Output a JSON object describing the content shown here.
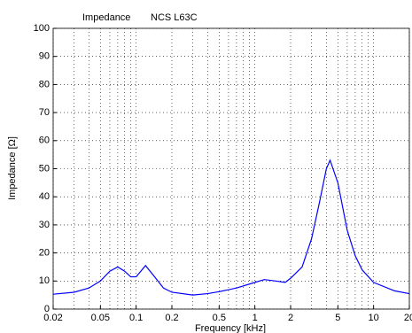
{
  "chart_data": {
    "type": "line",
    "title": "Impedance",
    "subtitle": "NCS L63C",
    "x_label": "Frequency [kHz]",
    "y_label": "Impedance [Ω]",
    "x_scale": "log",
    "grid": true,
    "xlim": [
      0.02,
      20
    ],
    "ylim": [
      0,
      100
    ],
    "xticks": [
      0.02,
      0.05,
      0.1,
      0.2,
      0.5,
      1,
      2,
      5,
      10,
      20
    ],
    "xminorticks": [
      0.03,
      0.04,
      0.06,
      0.07,
      0.08,
      0.09,
      0.3,
      0.4,
      0.6,
      0.7,
      0.8,
      0.9,
      3,
      4,
      6,
      7,
      8,
      9
    ],
    "yticks": [
      0,
      10,
      20,
      30,
      40,
      50,
      60,
      70,
      80,
      90,
      100
    ],
    "x": [
      0.02,
      0.03,
      0.04,
      0.05,
      0.06,
      0.07,
      0.08,
      0.09,
      0.1,
      0.12,
      0.14,
      0.17,
      0.2,
      0.3,
      0.4,
      0.5,
      0.7,
      1.0,
      1.2,
      1.5,
      1.8,
      2.0,
      2.5,
      3.0,
      3.5,
      4.0,
      4.3,
      5.0,
      6.0,
      7.0,
      8.0,
      10,
      15,
      20
    ],
    "series": [
      {
        "name": "NCS L63C",
        "color": "#0000ff",
        "values": [
          5.3,
          6,
          7.5,
          10,
          13.5,
          15,
          13.5,
          11.5,
          11.5,
          15.5,
          12,
          7.5,
          6,
          5,
          5.5,
          6.2,
          7.5,
          9.5,
          10.5,
          10,
          9.5,
          11,
          15,
          25,
          38,
          50,
          53,
          45,
          28,
          19,
          14,
          9.5,
          6.5,
          5.5
        ]
      }
    ]
  }
}
